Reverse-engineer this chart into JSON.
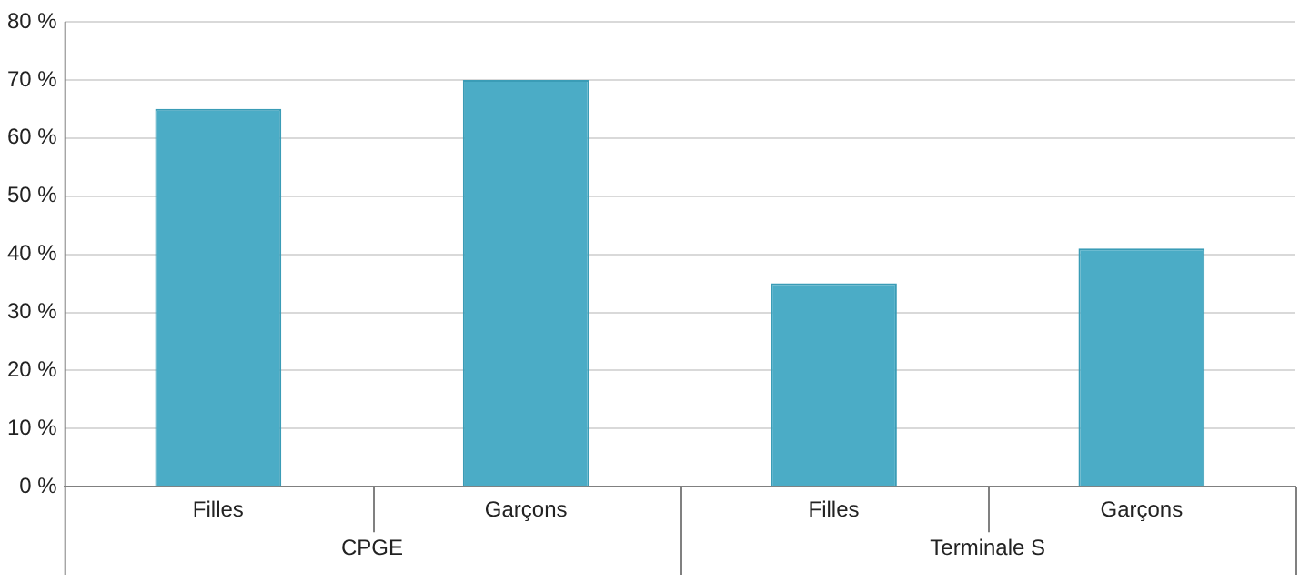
{
  "chart_data": {
    "type": "bar",
    "categories": [
      "Filles",
      "Garçons",
      "Filles",
      "Garçons"
    ],
    "values": [
      65,
      70,
      35,
      41
    ],
    "color": "#4bacc6",
    "ylim": [
      0,
      80
    ],
    "yticks": [
      {
        "value": 0,
        "label": "0 %"
      },
      {
        "value": 10,
        "label": "10 %"
      },
      {
        "value": 20,
        "label": "20 %"
      },
      {
        "value": 30,
        "label": "30 %"
      },
      {
        "value": 40,
        "label": "40 %"
      },
      {
        "value": 50,
        "label": "50 %"
      },
      {
        "value": 60,
        "label": "60 %"
      },
      {
        "value": 70,
        "label": "70 %"
      },
      {
        "value": 80,
        "label": "80 %"
      }
    ],
    "grid": "y",
    "legend": false,
    "annotations": [
      "CPGE",
      "Terminale S"
    ]
  }
}
